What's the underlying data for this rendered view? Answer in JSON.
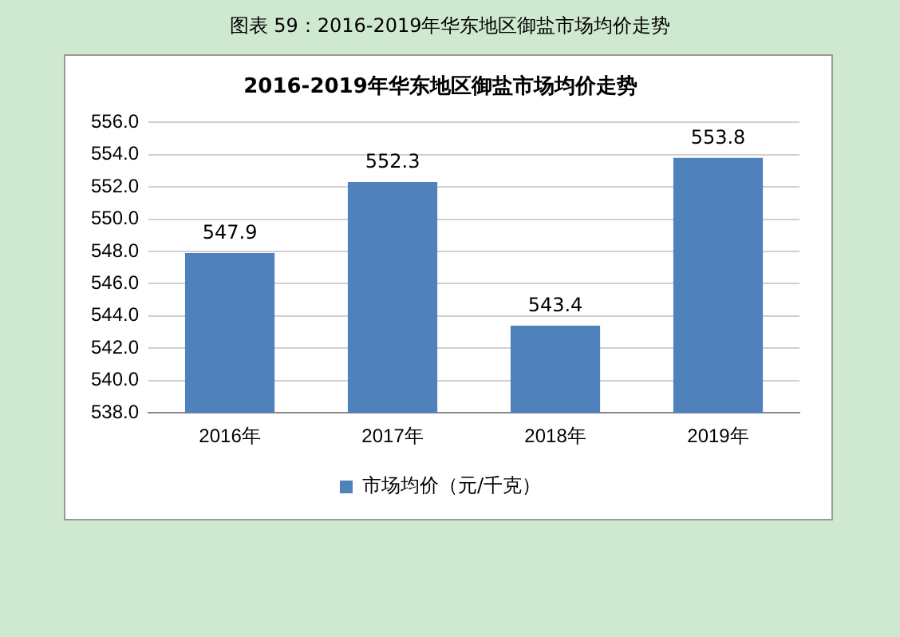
{
  "chart_data": {
    "type": "bar",
    "subtitle": "图表 59：2016-2019年华东地区御盐市场均价走势",
    "title": "2016-2019年华东地区御盐市场均价走势",
    "categories": [
      "2016年",
      "2017年",
      "2018年",
      "2019年"
    ],
    "series": [
      {
        "name": "市场均价（元/千克）",
        "color": "#4f81bd",
        "values": [
          547.9,
          552.3,
          543.4,
          553.8
        ]
      }
    ],
    "ylim": [
      538,
      556
    ],
    "yticks": [
      {
        "value": 538,
        "label": "538.0"
      },
      {
        "value": 540,
        "label": "540.0"
      },
      {
        "value": 542,
        "label": "542.0"
      },
      {
        "value": 544,
        "label": "544.0"
      },
      {
        "value": 546,
        "label": "546.0"
      },
      {
        "value": 548,
        "label": "548.0"
      },
      {
        "value": 550,
        "label": "550.0"
      },
      {
        "value": 552,
        "label": "552.0"
      },
      {
        "value": 554,
        "label": "554.0"
      },
      {
        "value": 556,
        "label": "556.0"
      }
    ],
    "grid": "y",
    "legend": "bottom",
    "data_labels": true
  }
}
